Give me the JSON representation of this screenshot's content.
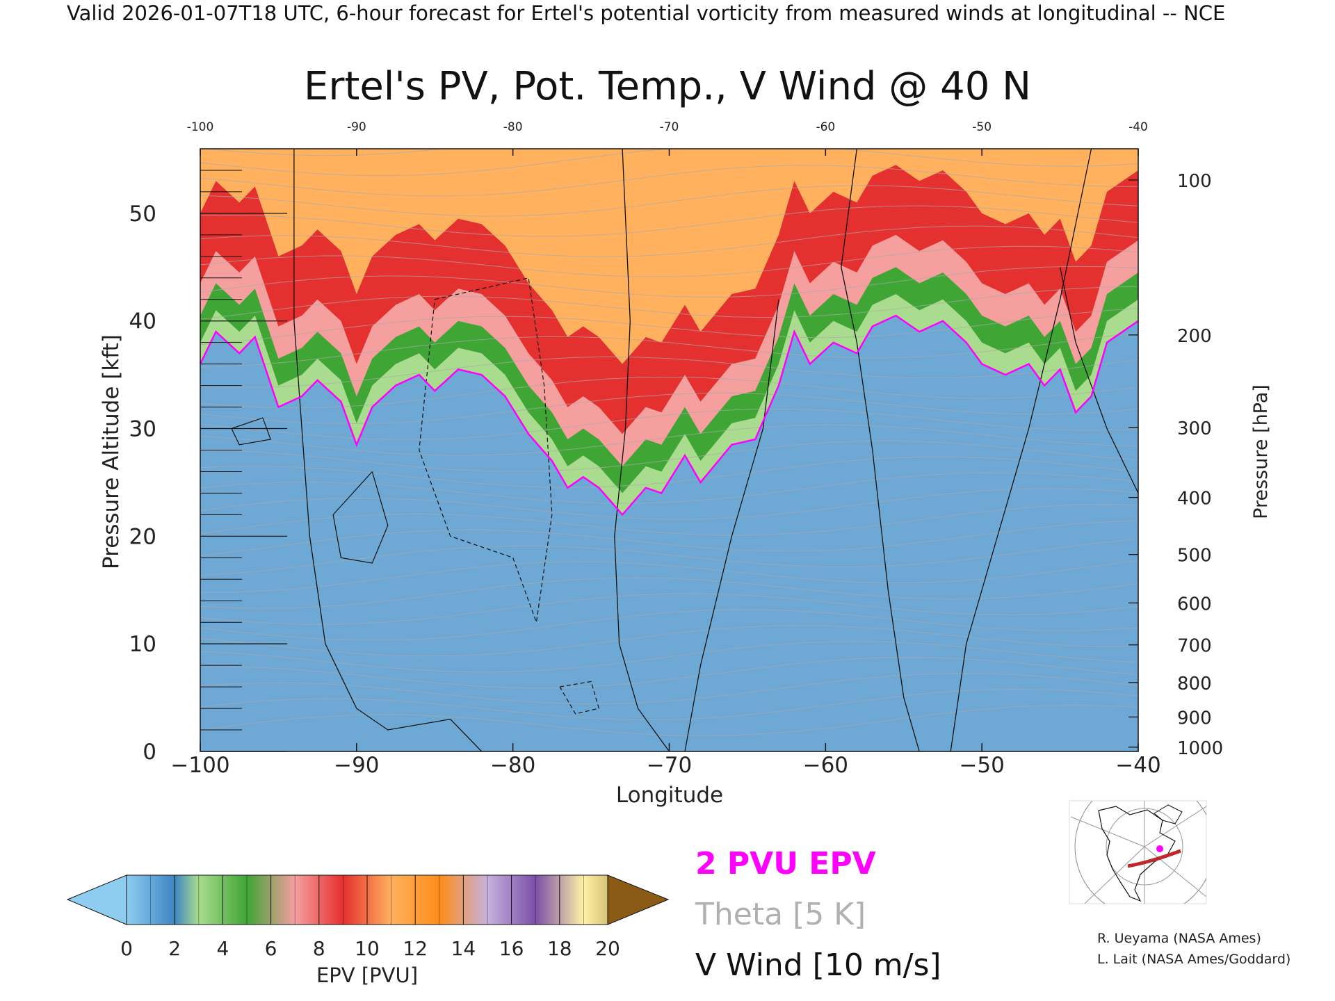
{
  "header_text": "Valid 2026-01-07T18 UTC, 6-hour forecast for Ertel's potential vorticity from measured winds at longitudinal -- NCE",
  "chart_data": {
    "type": "heatmap",
    "title": "Ertel's PV, Pot. Temp., V Wind @ 40 N",
    "xlabel": "Longitude",
    "ylabel": "Pressure Altitude [kft]",
    "y2label": "Pressure [hPa]",
    "xlim": [
      -100,
      -40
    ],
    "ylim": [
      0,
      56
    ],
    "x_ticks": [
      -100,
      -90,
      -80,
      -70,
      -60,
      -50,
      -40
    ],
    "x_tick_labels": [
      "−100",
      "−90",
      "−80",
      "−70",
      "−60",
      "−50",
      "−40"
    ],
    "top_tick_labels": [
      "-100",
      "-90",
      "-80",
      "-70",
      "-60",
      "-50",
      "-40"
    ],
    "y_ticks": [
      0,
      10,
      20,
      30,
      40,
      50
    ],
    "pressure_ticks": [
      {
        "hpa": 100,
        "kft": 53.1
      },
      {
        "hpa": 200,
        "kft": 38.7
      },
      {
        "hpa": 300,
        "kft": 30.1
      },
      {
        "hpa": 400,
        "kft": 23.6
      },
      {
        "hpa": 500,
        "kft": 18.3
      },
      {
        "hpa": 600,
        "kft": 13.8
      },
      {
        "hpa": 700,
        "kft": 9.9
      },
      {
        "hpa": 800,
        "kft": 6.4
      },
      {
        "hpa": 900,
        "kft": 3.2
      },
      {
        "hpa": 1000,
        "kft": 0.4
      }
    ],
    "tropopause_2pvu_kft": [
      {
        "lon": -100,
        "kft": 36
      },
      {
        "lon": -99,
        "kft": 39
      },
      {
        "lon": -97.5,
        "kft": 37
      },
      {
        "lon": -96.5,
        "kft": 38.5
      },
      {
        "lon": -95,
        "kft": 32
      },
      {
        "lon": -93.5,
        "kft": 33
      },
      {
        "lon": -92.5,
        "kft": 34.5
      },
      {
        "lon": -91,
        "kft": 32.5
      },
      {
        "lon": -90,
        "kft": 28.5
      },
      {
        "lon": -89,
        "kft": 32
      },
      {
        "lon": -87.5,
        "kft": 34
      },
      {
        "lon": -86,
        "kft": 35
      },
      {
        "lon": -85,
        "kft": 33.5
      },
      {
        "lon": -83.5,
        "kft": 35.5
      },
      {
        "lon": -82,
        "kft": 35
      },
      {
        "lon": -80.5,
        "kft": 33
      },
      {
        "lon": -79,
        "kft": 29.5
      },
      {
        "lon": -77.5,
        "kft": 27
      },
      {
        "lon": -76.5,
        "kft": 24.5
      },
      {
        "lon": -75.5,
        "kft": 25.5
      },
      {
        "lon": -74.5,
        "kft": 24.5
      },
      {
        "lon": -73,
        "kft": 22
      },
      {
        "lon": -71.5,
        "kft": 24.5
      },
      {
        "lon": -70.5,
        "kft": 24
      },
      {
        "lon": -69,
        "kft": 27.5
      },
      {
        "lon": -68,
        "kft": 25
      },
      {
        "lon": -66,
        "kft": 28.5
      },
      {
        "lon": -64.5,
        "kft": 29
      },
      {
        "lon": -63,
        "kft": 34
      },
      {
        "lon": -62,
        "kft": 39
      },
      {
        "lon": -61,
        "kft": 36
      },
      {
        "lon": -59.5,
        "kft": 38
      },
      {
        "lon": -58,
        "kft": 37
      },
      {
        "lon": -57,
        "kft": 39.5
      },
      {
        "lon": -55.5,
        "kft": 40.5
      },
      {
        "lon": -54,
        "kft": 39
      },
      {
        "lon": -52.5,
        "kft": 40
      },
      {
        "lon": -51,
        "kft": 38
      },
      {
        "lon": -50,
        "kft": 36
      },
      {
        "lon": -48.5,
        "kft": 35
      },
      {
        "lon": -47,
        "kft": 36
      },
      {
        "lon": -46,
        "kft": 34
      },
      {
        "lon": -45,
        "kft": 35.5
      },
      {
        "lon": -44,
        "kft": 31.5
      },
      {
        "lon": -43,
        "kft": 33
      },
      {
        "lon": -42,
        "kft": 38
      },
      {
        "lon": -40,
        "kft": 40
      }
    ],
    "pv_bands_kft_above_2pvu": {
      "light_green": 2,
      "green": 4.5,
      "red_start": 7.5,
      "orange_start": 14
    },
    "colorbar": {
      "label": "EPV [PVU]",
      "range": [
        0,
        20
      ],
      "tick_labels": [
        "0",
        "2",
        "4",
        "6",
        "8",
        "10",
        "12",
        "14",
        "16",
        "18",
        "20"
      ],
      "colors": [
        "#8ecdf0",
        "#3d86c2",
        "#a9dc8e",
        "#3fa535",
        "#f59f9f",
        "#e53030",
        "#ffb15e",
        "#ff8c1a",
        "#c6b2dd",
        "#7b4fa8",
        "#fff2a6",
        "#8b5a14"
      ]
    },
    "legend": [
      {
        "label": "2 PVU EPV",
        "color": "#ff00ff"
      },
      {
        "label": "Theta [5 K]",
        "color": "#aaaaaa"
      },
      {
        "label": "V Wind [10 m/s]",
        "color": "#111111"
      }
    ]
  },
  "credits": [
    "R. Ueyama (NASA Ames)",
    "L. Lait (NASA Ames/Goddard)"
  ],
  "colors": {
    "tropopause": "#ff00ff",
    "theta": "#aaaaaa",
    "wind": "#111111",
    "map_track": "#c0282a"
  }
}
